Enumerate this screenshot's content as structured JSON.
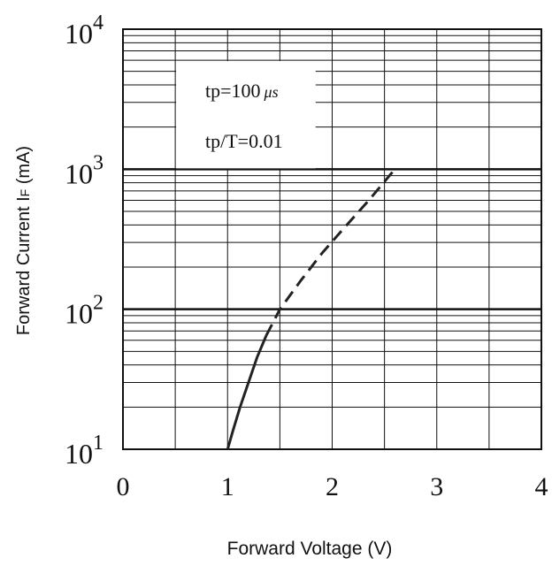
{
  "chart_data": {
    "type": "line",
    "xlabel": "Forward Voltage (V)",
    "ylabel_main": "Forward Current I",
    "ylabel_sub": "F",
    "ylabel_unit": " (mA)",
    "xlim": [
      0,
      4
    ],
    "ylim": [
      10,
      10000
    ],
    "y_scale": "log",
    "grid": true,
    "x_ticks": [
      {
        "value": 0,
        "label": "0"
      },
      {
        "value": 1,
        "label": "1"
      },
      {
        "value": 2,
        "label": "2"
      },
      {
        "value": 3,
        "label": "3"
      },
      {
        "value": 4,
        "label": "4"
      }
    ],
    "y_ticks": [
      {
        "value": 10,
        "base": "10",
        "exp": "1"
      },
      {
        "value": 100,
        "base": "10",
        "exp": "2"
      },
      {
        "value": 1000,
        "base": "10",
        "exp": "3"
      },
      {
        "value": 10000,
        "base": "10",
        "exp": "4"
      }
    ],
    "annotations": {
      "line1_main": "tp=100",
      "line1_unit": "μs",
      "line2": "tp/T=0.01"
    },
    "series": [
      {
        "style": "solid",
        "color": "#222222",
        "points": [
          [
            1.0,
            10
          ],
          [
            1.05,
            13.5
          ],
          [
            1.12,
            20
          ],
          [
            1.2,
            30
          ],
          [
            1.28,
            45
          ],
          [
            1.37,
            65
          ]
        ]
      },
      {
        "style": "dashed",
        "color": "#222222",
        "points": [
          [
            1.37,
            65
          ],
          [
            1.5,
            100
          ],
          [
            1.7,
            160
          ],
          [
            1.9,
            250
          ],
          [
            2.1,
            370
          ],
          [
            2.35,
            600
          ],
          [
            2.6,
            1000
          ]
        ]
      }
    ]
  }
}
